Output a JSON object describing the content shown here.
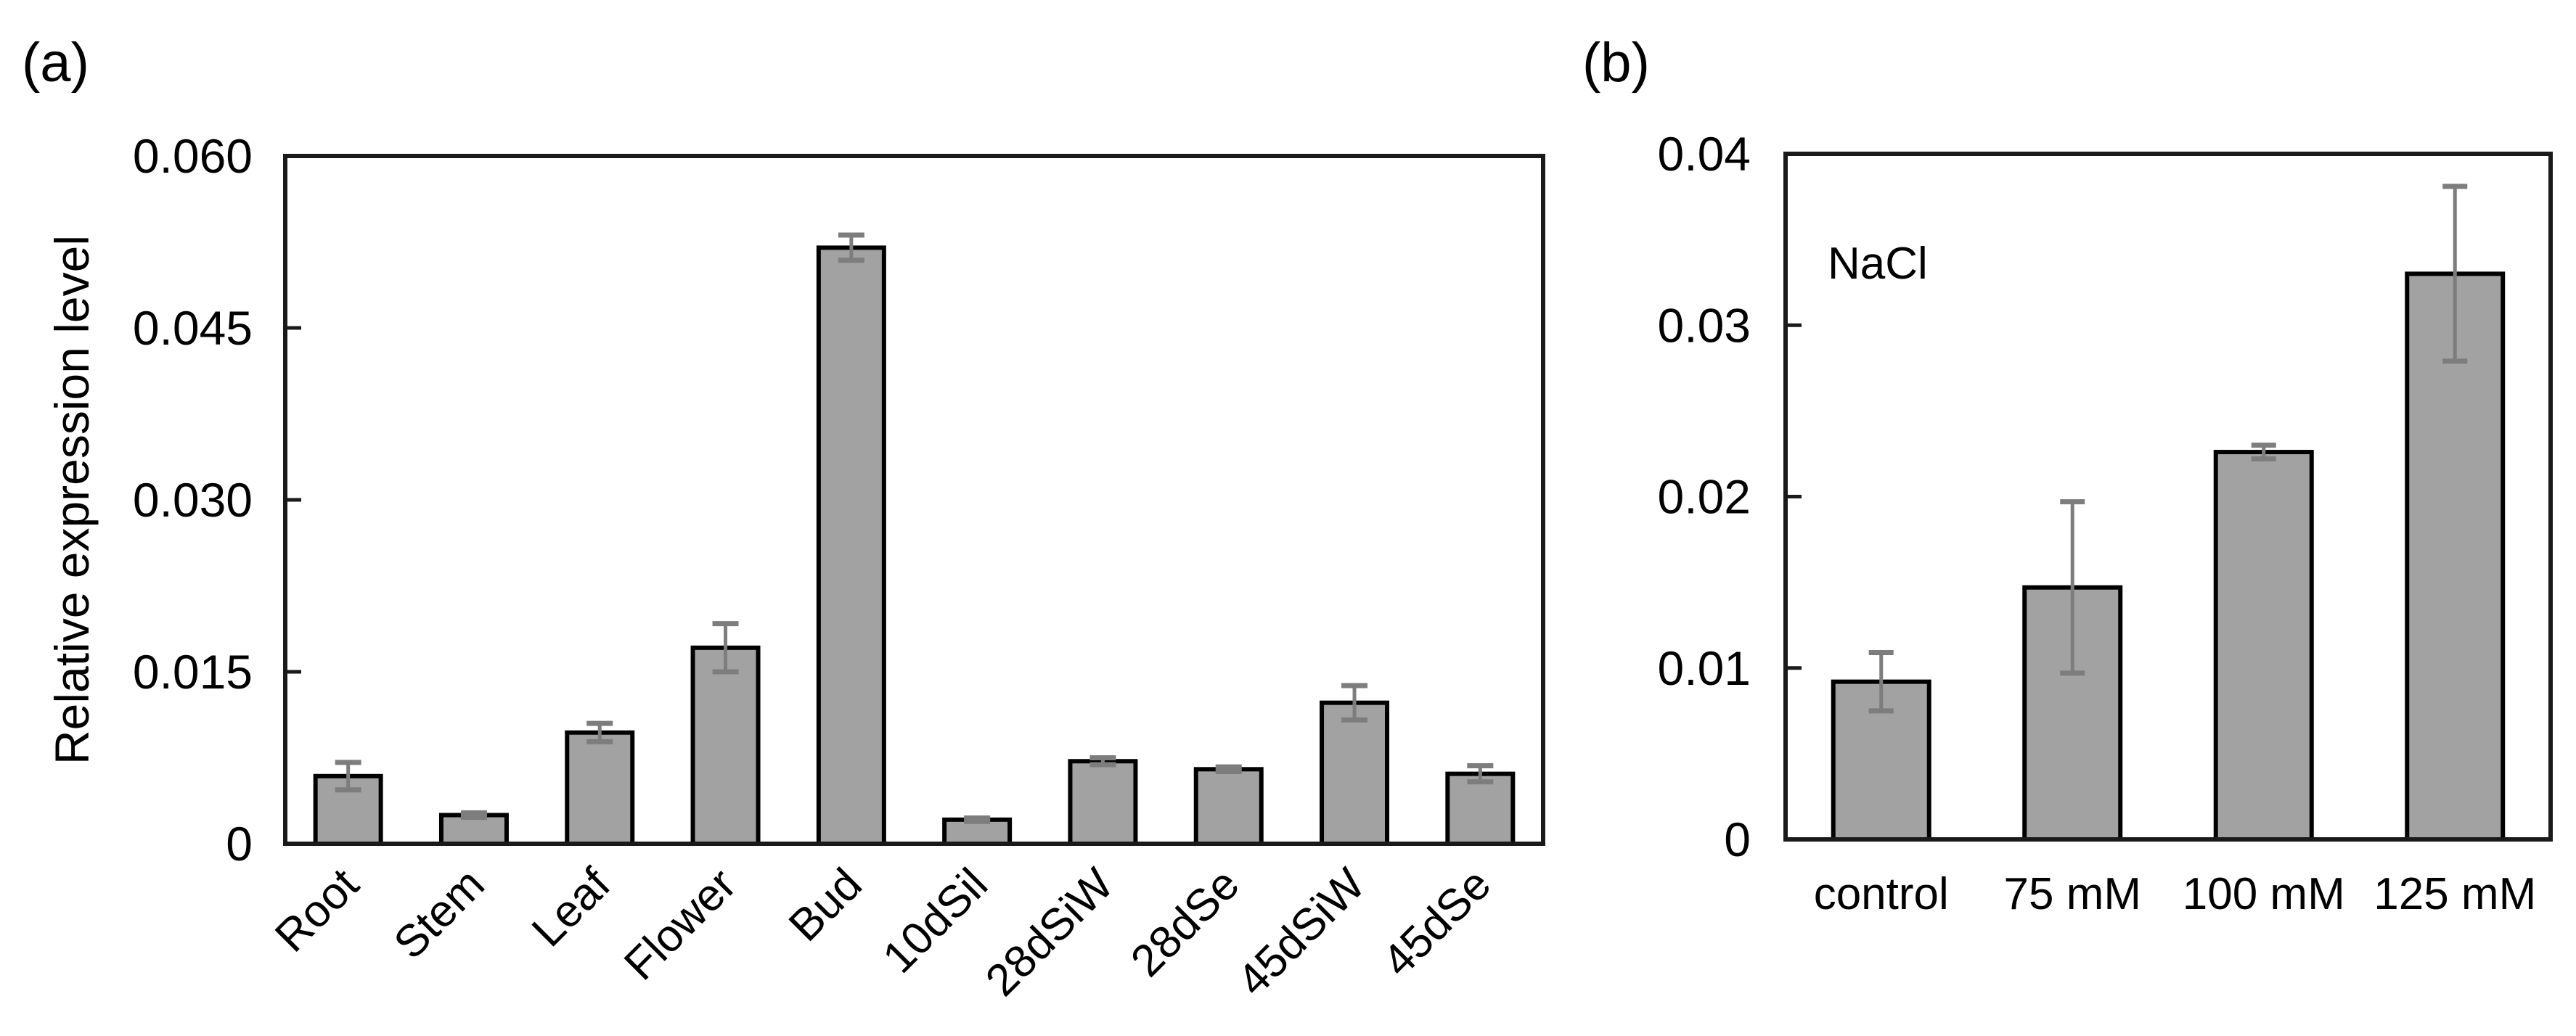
{
  "figure": {
    "background": "#ffffff",
    "bar_fill": "#a2a2a2",
    "bar_stroke": "#000000",
    "error_color": "#7d7d7d",
    "axis_color": "#1a1a1a",
    "text_color": "#000000"
  },
  "chart_data": [
    {
      "id": "a",
      "panel_label": "(a)",
      "type": "bar",
      "title": "",
      "xlabel": "",
      "ylabel": "Relative expression level",
      "ylim": [
        0,
        0.06
      ],
      "yticks": [
        0,
        0.015,
        0.03,
        0.045,
        0.06
      ],
      "ytick_labels": [
        "0",
        "0.015",
        "0.030",
        "0.045",
        "0.060"
      ],
      "categories": [
        "Root",
        "Stem",
        "Leaf",
        "Flower",
        "Bud",
        "10dSil",
        "28dSiW",
        "28dSe",
        "45dSiW",
        "45dSe"
      ],
      "values": [
        0.0059,
        0.0025,
        0.0097,
        0.0171,
        0.052,
        0.0021,
        0.0072,
        0.0065,
        0.0123,
        0.0061
      ],
      "errors": [
        0.0012,
        0.0002,
        0.0008,
        0.0021,
        0.0011,
        0.00015,
        0.0003,
        0.0002,
        0.0015,
        0.0007
      ],
      "x_label_rotation": -45,
      "grid": false,
      "legend": "none"
    },
    {
      "id": "b",
      "panel_label": "(b)",
      "type": "bar",
      "title": "",
      "annotation": "NaCl",
      "xlabel": "",
      "ylabel": "",
      "ylim": [
        0,
        0.04
      ],
      "yticks": [
        0,
        0.01,
        0.02,
        0.03,
        0.04
      ],
      "ytick_labels": [
        "0",
        "0.01",
        "0.02",
        "0.03",
        "0.04"
      ],
      "categories": [
        "control",
        "75 mM",
        "100 mM",
        "125 mM"
      ],
      "values": [
        0.0092,
        0.0147,
        0.0226,
        0.033
      ],
      "errors": [
        0.0017,
        0.005,
        0.0004,
        0.0051
      ],
      "x_label_rotation": 0,
      "grid": false,
      "legend": "none"
    }
  ]
}
